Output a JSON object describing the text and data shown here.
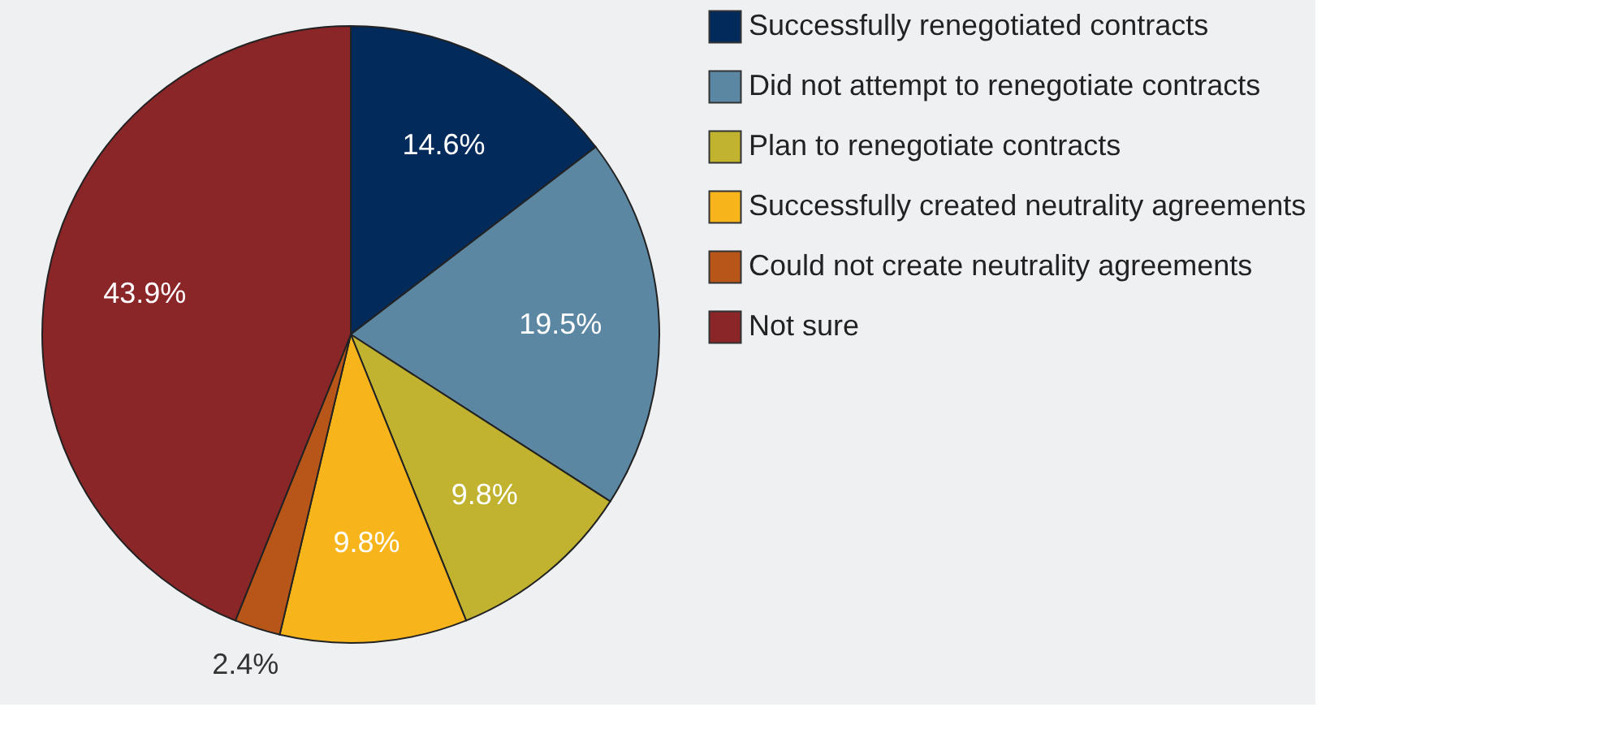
{
  "chart_data": {
    "type": "pie",
    "categories": [
      "Successfully renegotiated contracts",
      "Did not attempt to renegotiate contracts",
      "Plan to renegotiate contracts",
      "Successfully created neutrality agreements",
      "Could not create neutrality agreements",
      "Not sure"
    ],
    "values": [
      14.6,
      19.5,
      9.8,
      9.8,
      2.4,
      43.9
    ],
    "value_labels": [
      "14.6%",
      "19.5%",
      "9.8%",
      "9.8%",
      "2.4%",
      "43.9%"
    ],
    "colors": [
      "#022b5c",
      "#5b87a3",
      "#c1b22f",
      "#f8b51b",
      "#b8561a",
      "#8a2528"
    ],
    "legend": "right"
  }
}
